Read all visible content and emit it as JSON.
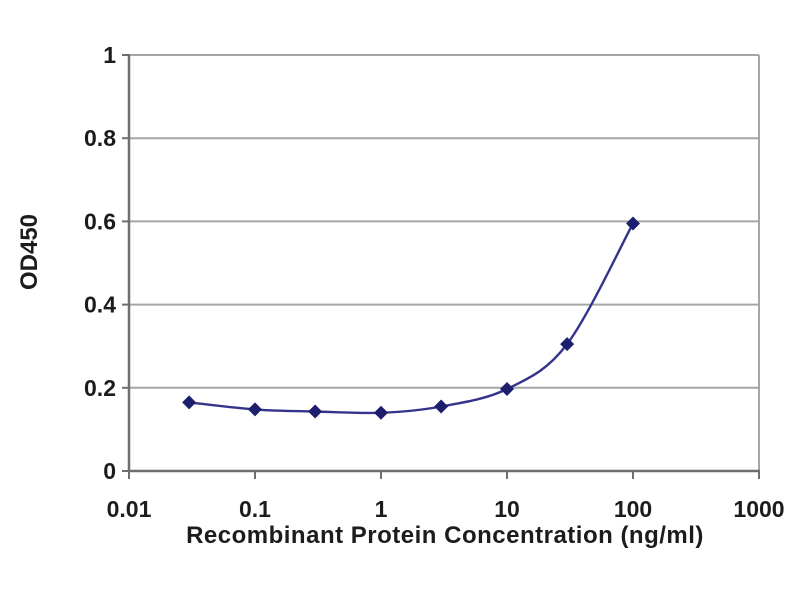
{
  "chart_data": {
    "type": "line",
    "subtype": "xy-points-smooth-line",
    "title": "",
    "xlabel": "Recombinant Protein Concentration (ng/ml)",
    "ylabel": "OD450",
    "x_scale": "log10",
    "xlim": [
      0.01,
      1000
    ],
    "ylim": [
      0,
      1
    ],
    "grid": "horizontal-only",
    "legend": "none",
    "x_ticks": {
      "values": [
        0.01,
        0.1,
        1,
        10,
        100,
        1000
      ],
      "labels": [
        "0.01",
        "0.1",
        "1",
        "10",
        "100",
        "1000"
      ]
    },
    "y_ticks": {
      "values": [
        0,
        0.2,
        0.4,
        0.6,
        0.8,
        1
      ],
      "labels": [
        "0",
        "0.2",
        "0.4",
        "0.6",
        "0.8",
        "1"
      ]
    },
    "series": [
      {
        "marker": "diamond",
        "x": [
          0.03,
          0.1,
          0.3,
          1,
          3,
          10,
          30,
          100
        ],
        "y": [
          0.165,
          0.148,
          0.143,
          0.14,
          0.155,
          0.197,
          0.305,
          0.595
        ],
        "line_color": "#34348c",
        "marker_color": "#1e1e6e"
      }
    ]
  },
  "colors": {
    "background": "#ffffff",
    "grid": "#a6a6a6",
    "axis": "#6f6f6f",
    "text": "#1c1c1c"
  }
}
